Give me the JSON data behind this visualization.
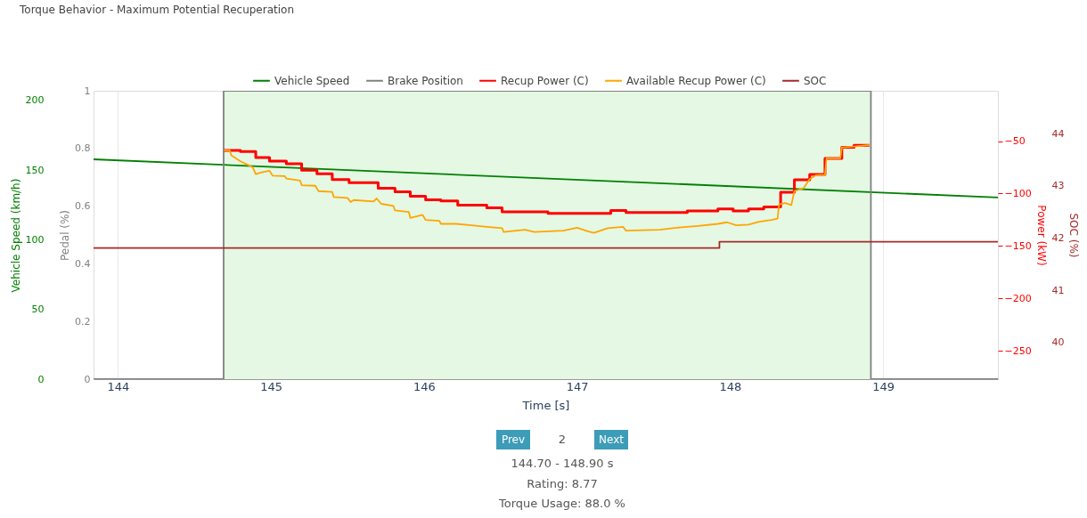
{
  "chart_data": [
    {
      "type": "line",
      "title": "Torque Behavior - Maximum Potential Recuperation",
      "xlabel": "Time [s]",
      "ylabel": "Vehicle Speed (km/h)",
      "y2label": "Pedal (%)",
      "xlim": [
        143.84,
        149.75
      ],
      "xticks": [
        144,
        145,
        146,
        147,
        148,
        149
      ],
      "ylim": [
        0,
        207
      ],
      "yticks": [
        0,
        50,
        100,
        150,
        200
      ],
      "y2lim": [
        0,
        1
      ],
      "y2ticks": [
        0,
        0.2,
        0.4,
        0.6,
        0.8,
        1
      ],
      "grid": "x",
      "legend": "top",
      "bands": [
        {
          "axis": "x",
          "from": 144.69,
          "to": 148.92,
          "color": "#e4f8e4"
        }
      ],
      "series": [
        {
          "name": "Vehicle Speed",
          "color": "#008000",
          "x": [
            143.84,
            149.75
          ],
          "values": [
            157.8,
            130.4
          ]
        },
        {
          "name": "Brake Position",
          "color": "#808080",
          "axis": "y2",
          "x": [
            143.84,
            144.69,
            144.69,
            148.92,
            148.92,
            149.75
          ],
          "values": [
            0,
            0,
            1,
            1,
            0,
            0
          ]
        }
      ],
      "annotations": [
        "Prev",
        "2",
        "Next",
        "144.70 - 148.90 s",
        "Rating: 8.77",
        "Torque Usage: 88.0 %"
      ]
    },
    {
      "type": "line",
      "y2label": "Power (kW)",
      "y3label": "SOC (%)",
      "xlim": [
        143.84,
        149.75
      ],
      "tick_labels": "y",
      "legend": "top",
      "y2lim": [
        -277,
        -2
      ],
      "y2ticks": [
        -250,
        -200,
        -150,
        -100,
        -50
      ],
      "y3lim": [
        39.3,
        44.82
      ],
      "y3ticks": [
        40,
        41,
        42,
        43,
        44
      ],
      "series": [
        {
          "name": "Recup Power (C)",
          "color": "#ff0000",
          "axis": "y2",
          "type": "step",
          "x": [
            144.69,
            144.8,
            144.9,
            144.99,
            145.1,
            145.2,
            145.3,
            145.4,
            145.51,
            145.7,
            145.81,
            145.91,
            146.01,
            146.11,
            146.22,
            146.41,
            146.51,
            146.81,
            147.22,
            147.32,
            147.72,
            147.92,
            148.02,
            148.12,
            148.22,
            148.33,
            148.42,
            148.52,
            148.62,
            148.73,
            148.81,
            148.91
          ],
          "values": [
            -58.8,
            -60,
            -65.6,
            -69,
            -71.5,
            -77.8,
            -81.2,
            -86.6,
            -89.7,
            -94.9,
            -98.3,
            -102.5,
            -105.9,
            -107,
            -111,
            -113.6,
            -117.5,
            -119,
            -116.1,
            -118.1,
            -116.6,
            -114.7,
            -116.6,
            -114.7,
            -112.7,
            -98.8,
            -86.9,
            -81.7,
            -66.4,
            -56,
            -54,
            -54
          ]
        },
        {
          "name": "Available Recup Power (C)",
          "color": "#ffa500",
          "axis": "y2",
          "x": [
            144.69,
            144.73,
            144.74,
            144.8,
            144.88,
            144.9,
            144.94,
            144.99,
            145.01,
            145.09,
            145.1,
            145.19,
            145.2,
            145.29,
            145.31,
            145.4,
            145.41,
            145.5,
            145.52,
            145.54,
            145.67,
            145.69,
            145.72,
            145.8,
            145.81,
            145.9,
            145.91,
            145.99,
            146.01,
            146.1,
            146.11,
            146.21,
            146.31,
            146.41,
            146.51,
            146.52,
            146.66,
            146.72,
            146.91,
            147.0,
            147.07,
            147.11,
            147.2,
            147.3,
            147.32,
            147.54,
            147.65,
            147.79,
            147.92,
            147.98,
            148.04,
            148.12,
            148.19,
            148.27,
            148.31,
            148.32,
            148.36,
            148.4,
            148.42,
            148.48,
            148.52,
            148.56,
            148.62,
            148.63,
            148.72,
            148.73,
            148.81,
            148.91
          ],
          "values": [
            -58.8,
            -58.8,
            -63.6,
            -69.3,
            -74.9,
            -81.5,
            -79.8,
            -78.3,
            -82.9,
            -83.4,
            -85.7,
            -87.7,
            -92,
            -92.6,
            -97.7,
            -98.5,
            -103.4,
            -104.2,
            -108.1,
            -106.2,
            -107.6,
            -104.7,
            -109.8,
            -111.9,
            -116.1,
            -117.5,
            -123.2,
            -120.4,
            -125.1,
            -126,
            -128.9,
            -128.9,
            -130.3,
            -131.7,
            -133.1,
            -136.6,
            -134.5,
            -136.6,
            -135.4,
            -132.6,
            -136,
            -137.4,
            -133.1,
            -131.7,
            -135.4,
            -134.5,
            -132.6,
            -130.9,
            -128.9,
            -127.4,
            -130.3,
            -129.7,
            -126.9,
            -125.1,
            -124,
            -110.4,
            -109,
            -111,
            -97.7,
            -94.9,
            -86.3,
            -82.6,
            -82.1,
            -66.4,
            -66.4,
            -56,
            -55.1,
            -53.7
          ]
        },
        {
          "name": "SOC",
          "color": "#a52a2a",
          "axis": "y3",
          "x": [
            143.84,
            147.93,
            147.93,
            149.75
          ],
          "values": [
            41.81,
            41.81,
            41.93,
            41.93
          ]
        }
      ]
    }
  ]
}
